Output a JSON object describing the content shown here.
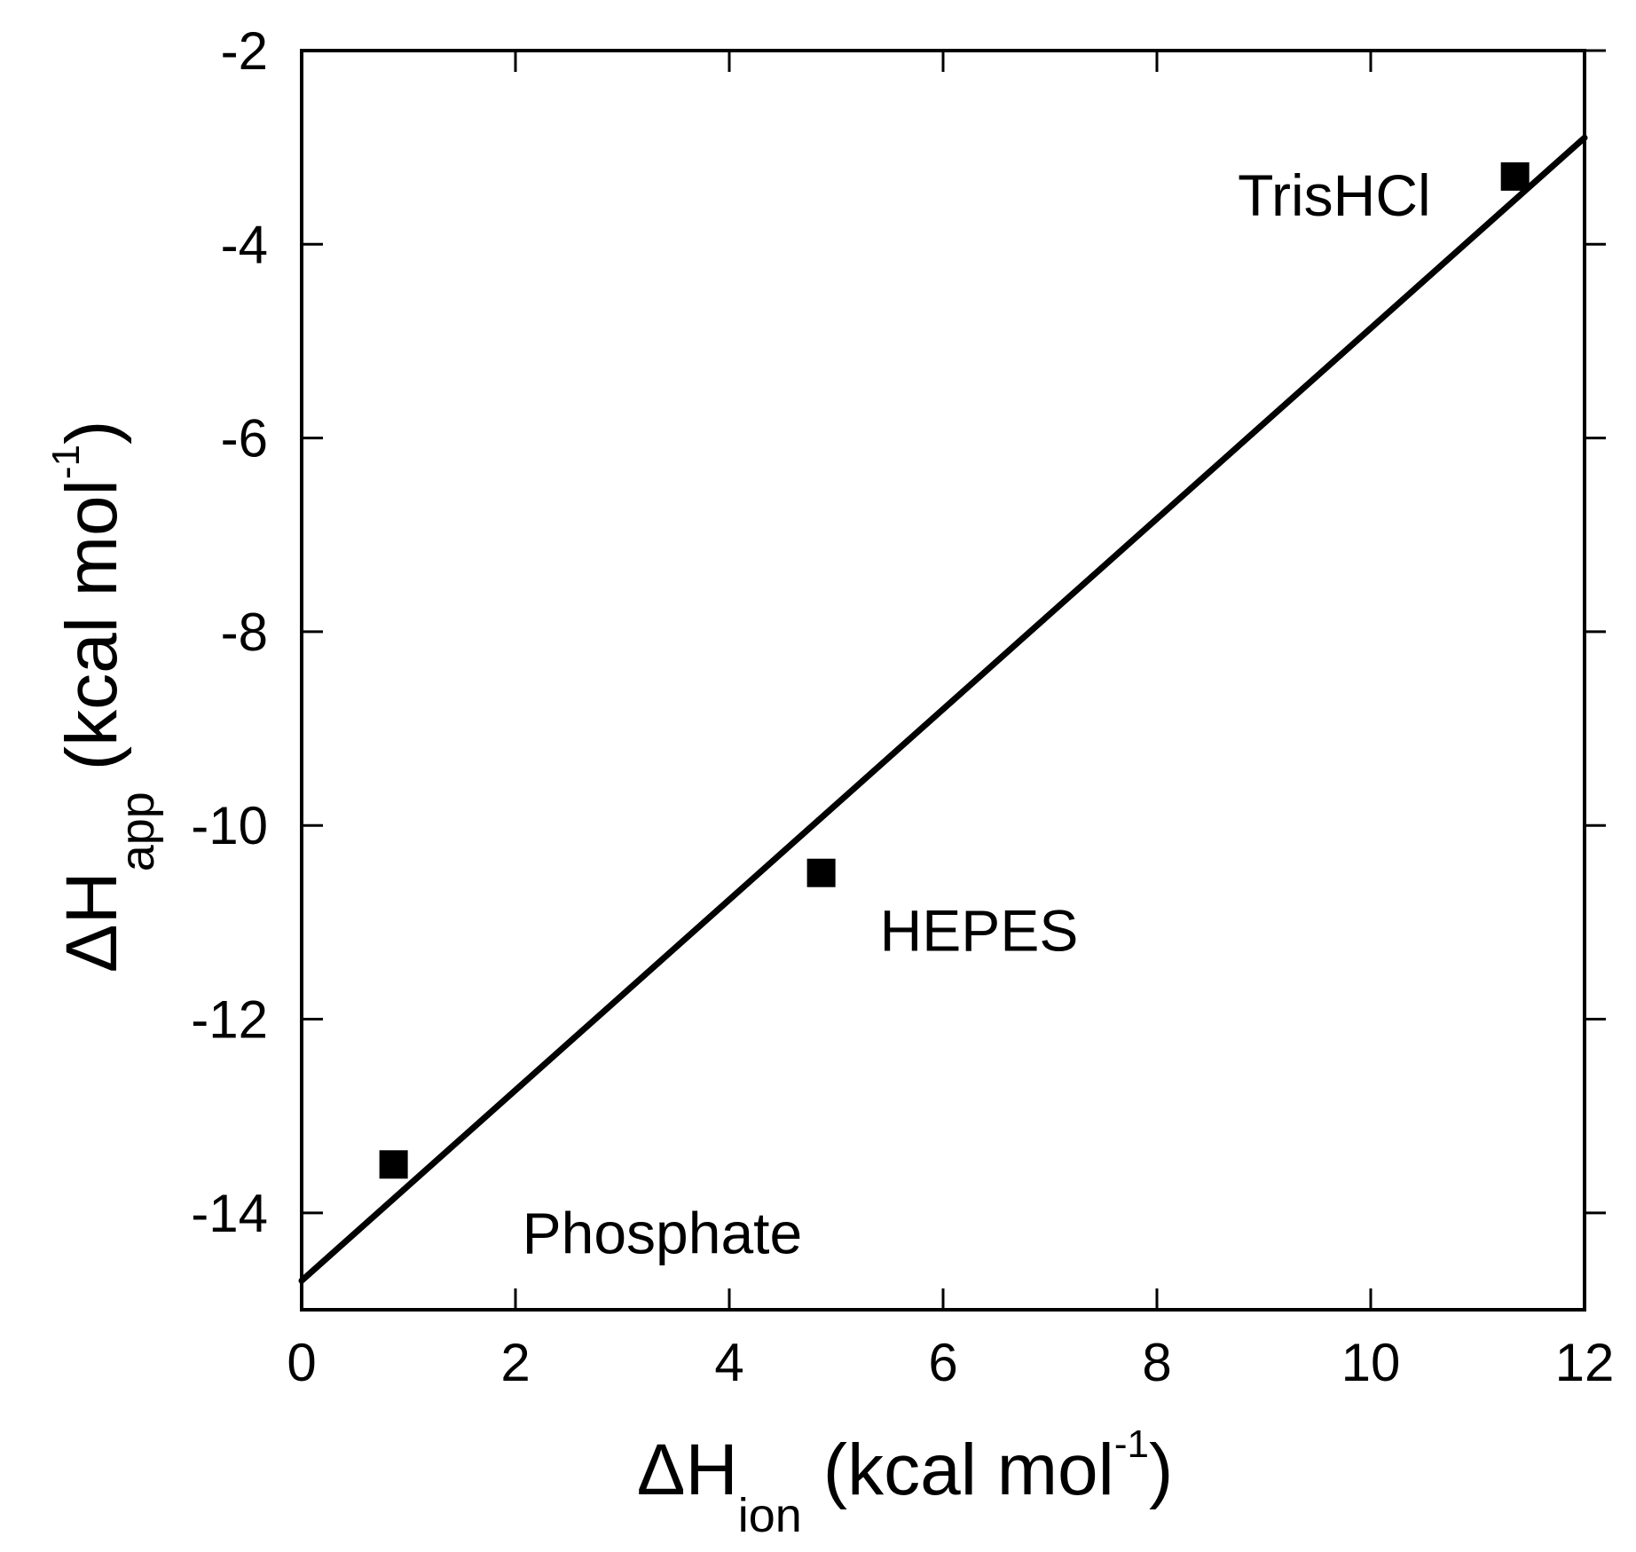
{
  "chart_data": {
    "type": "scatter",
    "xlabel": {
      "symbol": "ΔH",
      "subscript": "ion",
      "unit_open": "(kcal mol",
      "superscript": "-1",
      "unit_close": ")"
    },
    "ylabel": {
      "symbol": "ΔH",
      "subscript": "app",
      "unit_open": "(kcal mol",
      "superscript": "-1",
      "unit_close": ")"
    },
    "xlim": [
      0,
      12
    ],
    "ylim": [
      -15,
      -2
    ],
    "xticks": [
      0,
      2,
      4,
      6,
      8,
      10,
      12
    ],
    "yticks": [
      -2,
      -4,
      -6,
      -8,
      -10,
      -12,
      -14
    ],
    "xtick_labels": [
      "0",
      "2",
      "4",
      "6",
      "8",
      "10",
      "12"
    ],
    "ytick_labels": [
      "-2",
      "-4",
      "-6",
      "-8",
      "-10",
      "-12",
      "-14"
    ],
    "grid": false,
    "series": [
      {
        "marker": "square",
        "color": "#000000",
        "points": [
          {
            "x": 0.86,
            "y": -13.5,
            "label": "Phosphate"
          },
          {
            "x": 4.86,
            "y": -10.49,
            "label": "HEPES"
          },
          {
            "x": 11.35,
            "y": -3.3,
            "label": "TrisHCl"
          }
        ]
      }
    ],
    "fit_line": {
      "color": "#000000",
      "x": [
        0,
        12
      ],
      "y": [
        -14.7,
        -2.9
      ]
    }
  }
}
